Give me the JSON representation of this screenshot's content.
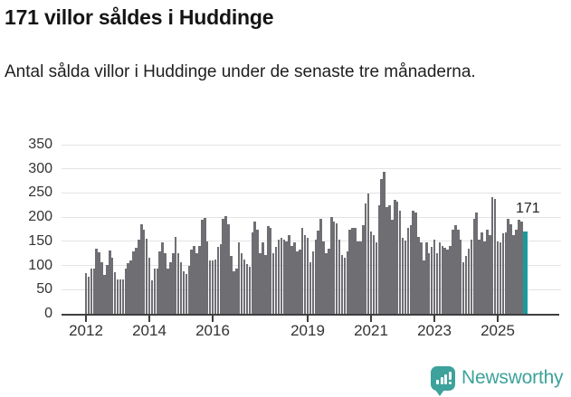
{
  "header": {
    "title": "171 villor såldes i Huddinge",
    "subtitle": "Antal sålda villor i Huddinge under de senaste tre månaderna."
  },
  "chart_data": {
    "type": "bar",
    "title": "171 villor såldes i Huddinge",
    "xlabel": "",
    "ylabel": "",
    "x_start": "2012-01",
    "frequency": "monthly",
    "ylim": [
      0,
      350
    ],
    "ytick_labels": [
      "0",
      "50",
      "100",
      "150",
      "200",
      "250",
      "300",
      "350"
    ],
    "ytick_values": [
      0,
      50,
      100,
      150,
      200,
      250,
      300,
      350
    ],
    "xticks": [
      {
        "label": "2012",
        "month_index": 0
      },
      {
        "label": "2014",
        "month_index": 24
      },
      {
        "label": "2016",
        "month_index": 48
      },
      {
        "label": "2019",
        "month_index": 84
      },
      {
        "label": "2021",
        "month_index": 108
      },
      {
        "label": "2023",
        "month_index": 132
      },
      {
        "label": "2025",
        "month_index": 156
      }
    ],
    "values": [
      84,
      77,
      94,
      94,
      134,
      128,
      107,
      80,
      101,
      131,
      116,
      86,
      71,
      71,
      71,
      94,
      104,
      111,
      130,
      137,
      153,
      185,
      175,
      155,
      116,
      69,
      94,
      94,
      129,
      147,
      125,
      94,
      107,
      125,
      160,
      125,
      107,
      88,
      82,
      100,
      132,
      141,
      125,
      141,
      194,
      199,
      150,
      110,
      110,
      112,
      138,
      144,
      197,
      203,
      185,
      119,
      88,
      94,
      147,
      125,
      113,
      103,
      97,
      169,
      191,
      175,
      125,
      147,
      122,
      182,
      178,
      125,
      138,
      154,
      157,
      154,
      150,
      163,
      141,
      147,
      129,
      132,
      178,
      163,
      157,
      107,
      129,
      154,
      172,
      197,
      150,
      125,
      135,
      200,
      191,
      188,
      154,
      122,
      116,
      129,
      175,
      178,
      177,
      150,
      150,
      183,
      228,
      248,
      170,
      163,
      147,
      225,
      278,
      294,
      220,
      225,
      194,
      235,
      232,
      213,
      157,
      152,
      178,
      183,
      213,
      210,
      160,
      147,
      110,
      147,
      125,
      138,
      154,
      125,
      147,
      141,
      137,
      132,
      141,
      175,
      183,
      175,
      154,
      107,
      119,
      135,
      154,
      197,
      210,
      154,
      169,
      150,
      175,
      163,
      241,
      238,
      150,
      147,
      166,
      169,
      197,
      185,
      163,
      175,
      194,
      190,
      171
    ],
    "highlight": {
      "index": 166,
      "value": 171,
      "label": "171"
    },
    "grid": true,
    "legend": "none"
  },
  "annotation": {
    "last_value_label": "171"
  },
  "footer": {
    "brand": "Newsworthy",
    "logo_icon_name": "newsworthy-bar-chart-bubble-icon"
  },
  "colors": {
    "bar": "#6f6e73",
    "highlight": "#1b9a9c",
    "logo": "#3da29b",
    "grid": "#e3e3e3",
    "axis": "#3f3f3f",
    "title_text": "#141414",
    "body_text": "#1f1f1f",
    "tick_text": "#333333"
  }
}
